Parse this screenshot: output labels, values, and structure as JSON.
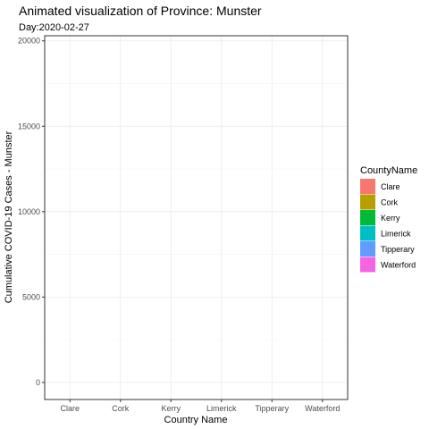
{
  "chart_data": {
    "type": "bar",
    "title": "Animated visualization of Province: Munster",
    "subtitle": "Day:2020-02-27",
    "xlabel": "Country Name",
    "ylabel": "Cumulative COVID-19 Cases - Munster",
    "categories": [
      "Clare",
      "Cork",
      "Kerry",
      "Limerick",
      "Tipperary",
      "Waterford"
    ],
    "values": [
      0,
      0,
      0,
      0,
      0,
      0
    ],
    "ylim": [
      -1000,
      20300
    ],
    "yticks": [
      0,
      5000,
      10000,
      15000,
      20000
    ],
    "ytick_labels": [
      "0",
      "5000",
      "10000",
      "15000",
      "20000"
    ],
    "grid": true,
    "legend": {
      "title": "CountyName",
      "position": "right",
      "entries": [
        {
          "label": "Clare",
          "color": "#F8766D"
        },
        {
          "label": "Cork",
          "color": "#B79F00"
        },
        {
          "label": "Kerry",
          "color": "#00BA38"
        },
        {
          "label": "Limerick",
          "color": "#00BFC4"
        },
        {
          "label": "Tipperary",
          "color": "#619CFF"
        },
        {
          "label": "Waterford",
          "color": "#F564E3"
        }
      ]
    }
  }
}
